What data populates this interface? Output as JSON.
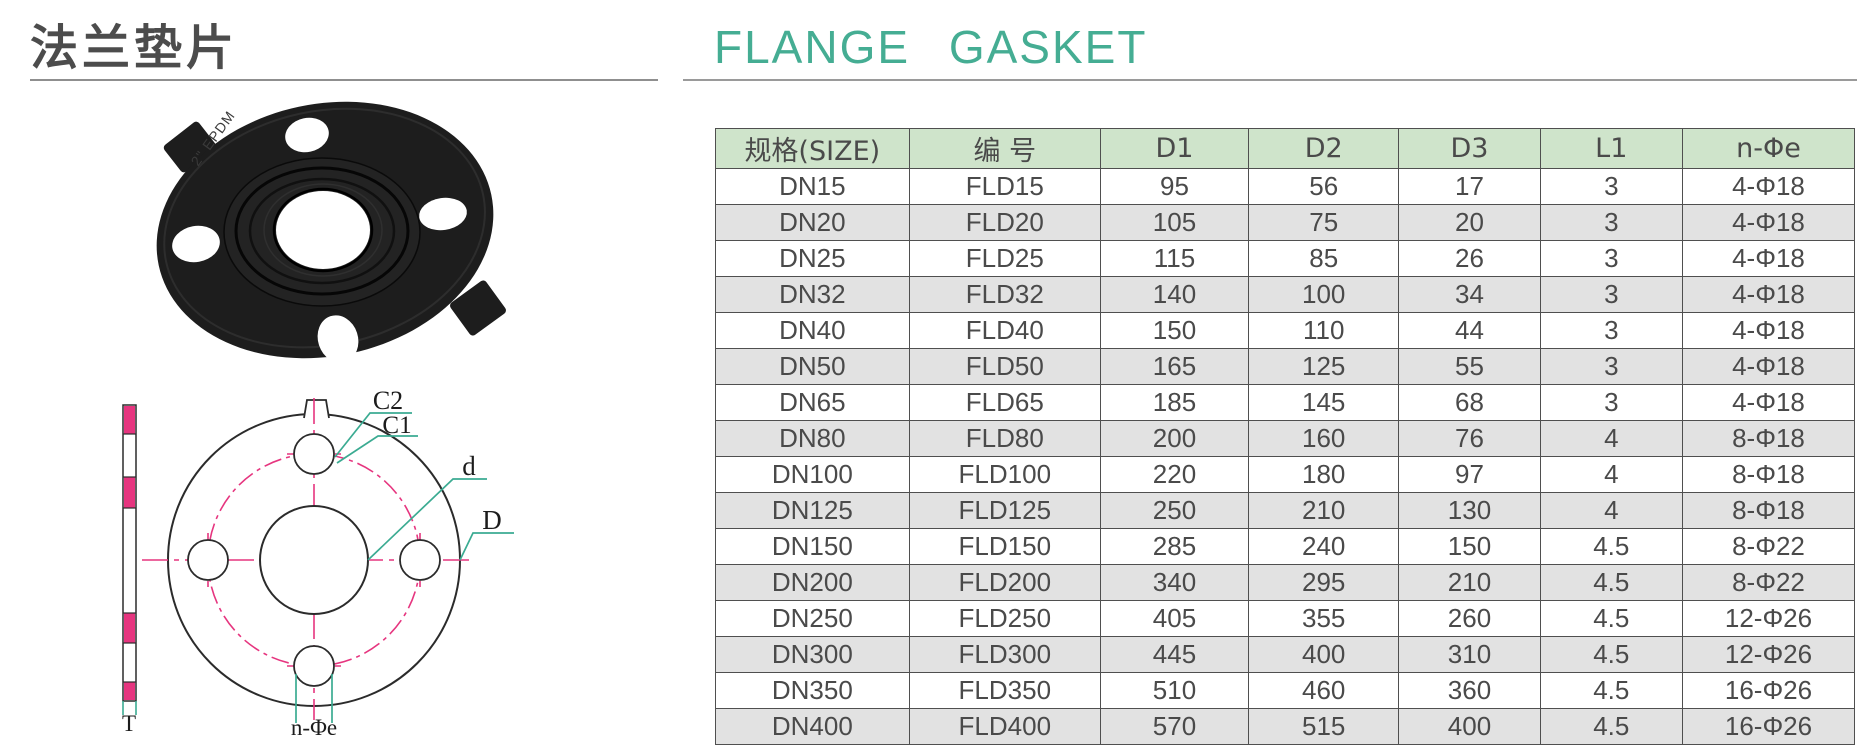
{
  "page": {
    "title_cn": "法兰垫片",
    "title_en": "FLANGE GASKET"
  },
  "colors": {
    "accent_teal": "#45AD93",
    "table_header_green": "#CFE4CB",
    "table_row_alt_gray": "#E2E2E2",
    "drawing_magenta": "#E6357F",
    "title_gray": "#4C4C4C"
  },
  "photo": {
    "marking": "2\" EPDM"
  },
  "drawing": {
    "labels": {
      "c2": "C2",
      "c1": "C1",
      "inner_diameter": "d",
      "outer_diameter": "D",
      "thickness": "T",
      "bolt_holes": "n-Φe"
    }
  },
  "table": {
    "headers": [
      "规格(SIZE)",
      "编 号",
      "D1",
      "D2",
      "D3",
      "L1",
      "n-Φe"
    ],
    "rows": [
      [
        "DN15",
        "FLD15",
        "95",
        "56",
        "17",
        "3",
        "4-Φ18"
      ],
      [
        "DN20",
        "FLD20",
        "105",
        "75",
        "20",
        "3",
        "4-Φ18"
      ],
      [
        "DN25",
        "FLD25",
        "115",
        "85",
        "26",
        "3",
        "4-Φ18"
      ],
      [
        "DN32",
        "FLD32",
        "140",
        "100",
        "34",
        "3",
        "4-Φ18"
      ],
      [
        "DN40",
        "FLD40",
        "150",
        "110",
        "44",
        "3",
        "4-Φ18"
      ],
      [
        "DN50",
        "FLD50",
        "165",
        "125",
        "55",
        "3",
        "4-Φ18"
      ],
      [
        "DN65",
        "FLD65",
        "185",
        "145",
        "68",
        "3",
        "4-Φ18"
      ],
      [
        "DN80",
        "FLD80",
        "200",
        "160",
        "76",
        "4",
        "8-Φ18"
      ],
      [
        "DN100",
        "FLD100",
        "220",
        "180",
        "97",
        "4",
        "8-Φ18"
      ],
      [
        "DN125",
        "FLD125",
        "250",
        "210",
        "130",
        "4",
        "8-Φ18"
      ],
      [
        "DN150",
        "FLD150",
        "285",
        "240",
        "150",
        "4.5",
        "8-Φ22"
      ],
      [
        "DN200",
        "FLD200",
        "340",
        "295",
        "210",
        "4.5",
        "8-Φ22"
      ],
      [
        "DN250",
        "FLD250",
        "405",
        "355",
        "260",
        "4.5",
        "12-Φ26"
      ],
      [
        "DN300",
        "FLD300",
        "445",
        "400",
        "310",
        "4.5",
        "12-Φ26"
      ],
      [
        "DN350",
        "FLD350",
        "510",
        "460",
        "360",
        "4.5",
        "16-Φ26"
      ],
      [
        "DN400",
        "FLD400",
        "570",
        "515",
        "400",
        "4.5",
        "16-Φ26"
      ]
    ]
  }
}
